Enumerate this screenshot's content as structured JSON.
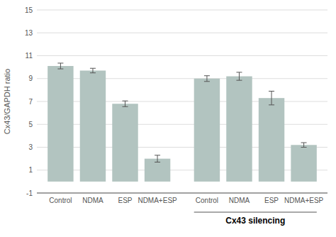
{
  "chart_data": {
    "type": "bar",
    "categories": [
      "Control",
      "NDMA",
      "ESP",
      "NDMA+ESP",
      "Control",
      "NDMA",
      "ESP",
      "NDMA+ESP"
    ],
    "values": [
      10.1,
      9.7,
      6.8,
      2.0,
      9.0,
      9.2,
      7.3,
      3.2
    ],
    "errors": [
      0.25,
      0.2,
      0.25,
      0.3,
      0.25,
      0.35,
      0.6,
      0.2
    ],
    "color": "#b2c4c0",
    "ylim": [
      -1,
      15
    ],
    "yticks": [
      -1,
      1,
      3,
      5,
      7,
      9,
      11,
      13,
      15
    ],
    "ylabel": "Cx43/GAPDH ratio",
    "grid": true,
    "annotations": [
      {
        "text": "Cx43 silencing",
        "from": 4
      }
    ]
  }
}
